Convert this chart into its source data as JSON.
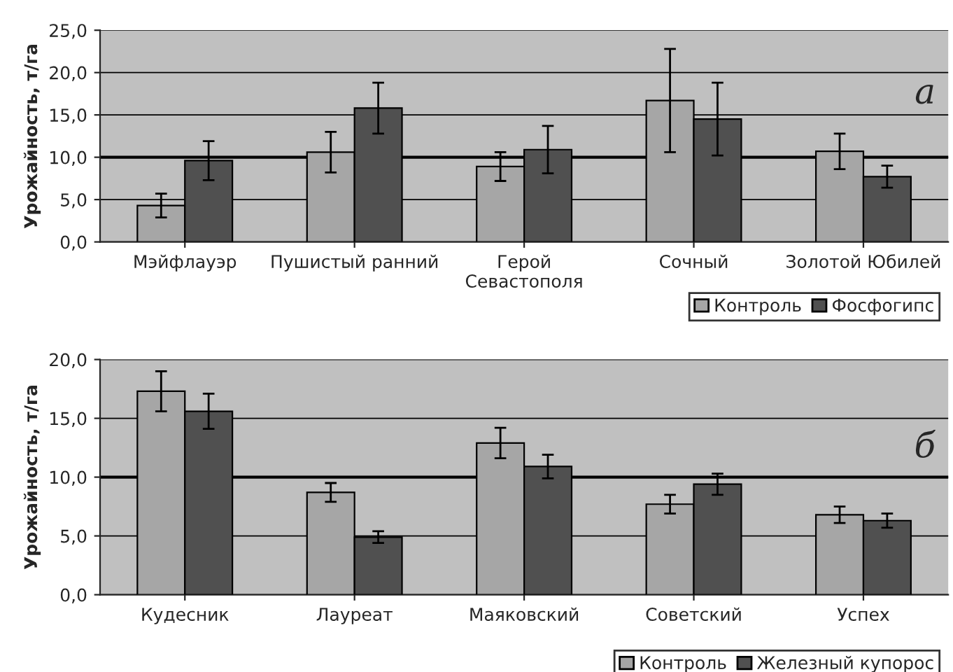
{
  "chart_data": [
    {
      "type": "bar",
      "ylabel": "Урожайность, т/га",
      "categories": [
        "Мэйфлауэр",
        "Пушистый ранний",
        "Герой\nСевастополя",
        "Сочный",
        "Золотой Юбилей"
      ],
      "series": [
        {
          "name": "Контроль",
          "color": "#a6a6a6",
          "values": [
            4.3,
            10.6,
            8.9,
            16.7,
            10.7
          ],
          "errors": [
            1.4,
            2.4,
            1.7,
            6.1,
            2.1
          ]
        },
        {
          "name": "Фосфогипс",
          "color": "#505050",
          "values": [
            9.6,
            15.8,
            10.9,
            14.5,
            7.7
          ],
          "errors": [
            2.3,
            3.0,
            2.8,
            4.3,
            1.3
          ]
        }
      ],
      "ylim": [
        0,
        25
      ],
      "yticks": [
        {
          "value": 0,
          "label": "0,0"
        },
        {
          "value": 5,
          "label": "5,0"
        },
        {
          "value": 10,
          "label": "10,0"
        },
        {
          "value": 15,
          "label": "15,0"
        },
        {
          "value": 20,
          "label": "20,0"
        },
        {
          "value": 25,
          "label": "25,0"
        }
      ],
      "grid": "y",
      "legend": "bottom right",
      "ref_lines": [
        {
          "axis": "y",
          "value": 10,
          "label": null
        }
      ],
      "annotations": [
        "а"
      ]
    },
    {
      "type": "bar",
      "ylabel": "Урожайность, т/га",
      "categories": [
        "Кудесник",
        "Лауреат",
        "Маяковский",
        "Советский",
        "Успех"
      ],
      "series": [
        {
          "name": "Контроль",
          "color": "#a6a6a6",
          "values": [
            17.3,
            8.7,
            12.9,
            7.7,
            6.8
          ],
          "errors": [
            1.7,
            0.8,
            1.3,
            0.8,
            0.7
          ]
        },
        {
          "name": "Железный купорос",
          "color": "#505050",
          "values": [
            15.6,
            4.9,
            10.9,
            9.4,
            6.3
          ],
          "errors": [
            1.5,
            0.5,
            1.0,
            0.9,
            0.6
          ]
        }
      ],
      "ylim": [
        0,
        20
      ],
      "yticks": [
        {
          "value": 0,
          "label": "0,0"
        },
        {
          "value": 5,
          "label": "5,0"
        },
        {
          "value": 10,
          "label": "10,0"
        },
        {
          "value": 15,
          "label": "15,0"
        },
        {
          "value": 20,
          "label": "20,0"
        }
      ],
      "grid": "y",
      "legend": "bottom right",
      "ref_lines": [
        {
          "axis": "y",
          "value": 10,
          "label": null
        }
      ],
      "annotations": [
        "б"
      ]
    }
  ]
}
